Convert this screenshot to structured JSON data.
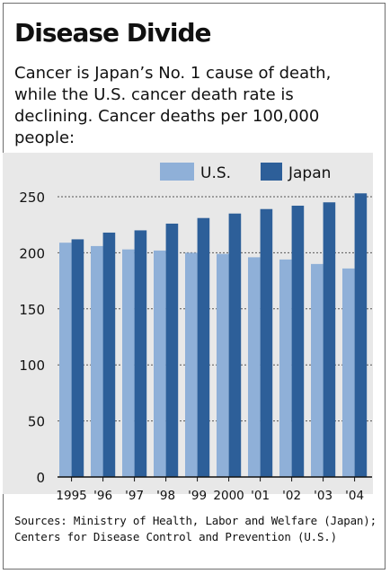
{
  "title": "Disease Divide",
  "subtitle": "Cancer is Japan’s No. 1 cause of death, while the U.S. cancer death rate is declining. Cancer deaths per 100,000 people:",
  "sources": "Sources: Ministry of Health, Labor and Welfare (Japan); Centers for Disease Control and Prevention (U.S.)",
  "chart_data": {
    "type": "bar",
    "categories": [
      "1995",
      "'96",
      "'97",
      "'98",
      "'99",
      "2000",
      "'01",
      "'02",
      "'03",
      "'04"
    ],
    "series": [
      {
        "name": "U.S.",
        "color": "#8fb0d8",
        "values": [
          209,
          206,
          203,
          202,
          200,
          199,
          196,
          194,
          190,
          186
        ]
      },
      {
        "name": "Japan",
        "color": "#2d5f99",
        "values": [
          212,
          218,
          220,
          226,
          231,
          235,
          239,
          242,
          245,
          253
        ]
      }
    ],
    "yticks": [
      0,
      50,
      100,
      150,
      200,
      250
    ],
    "ylim": [
      0,
      260
    ],
    "grid": true,
    "legend_position": "top-center",
    "background": "#e8e8e8"
  }
}
